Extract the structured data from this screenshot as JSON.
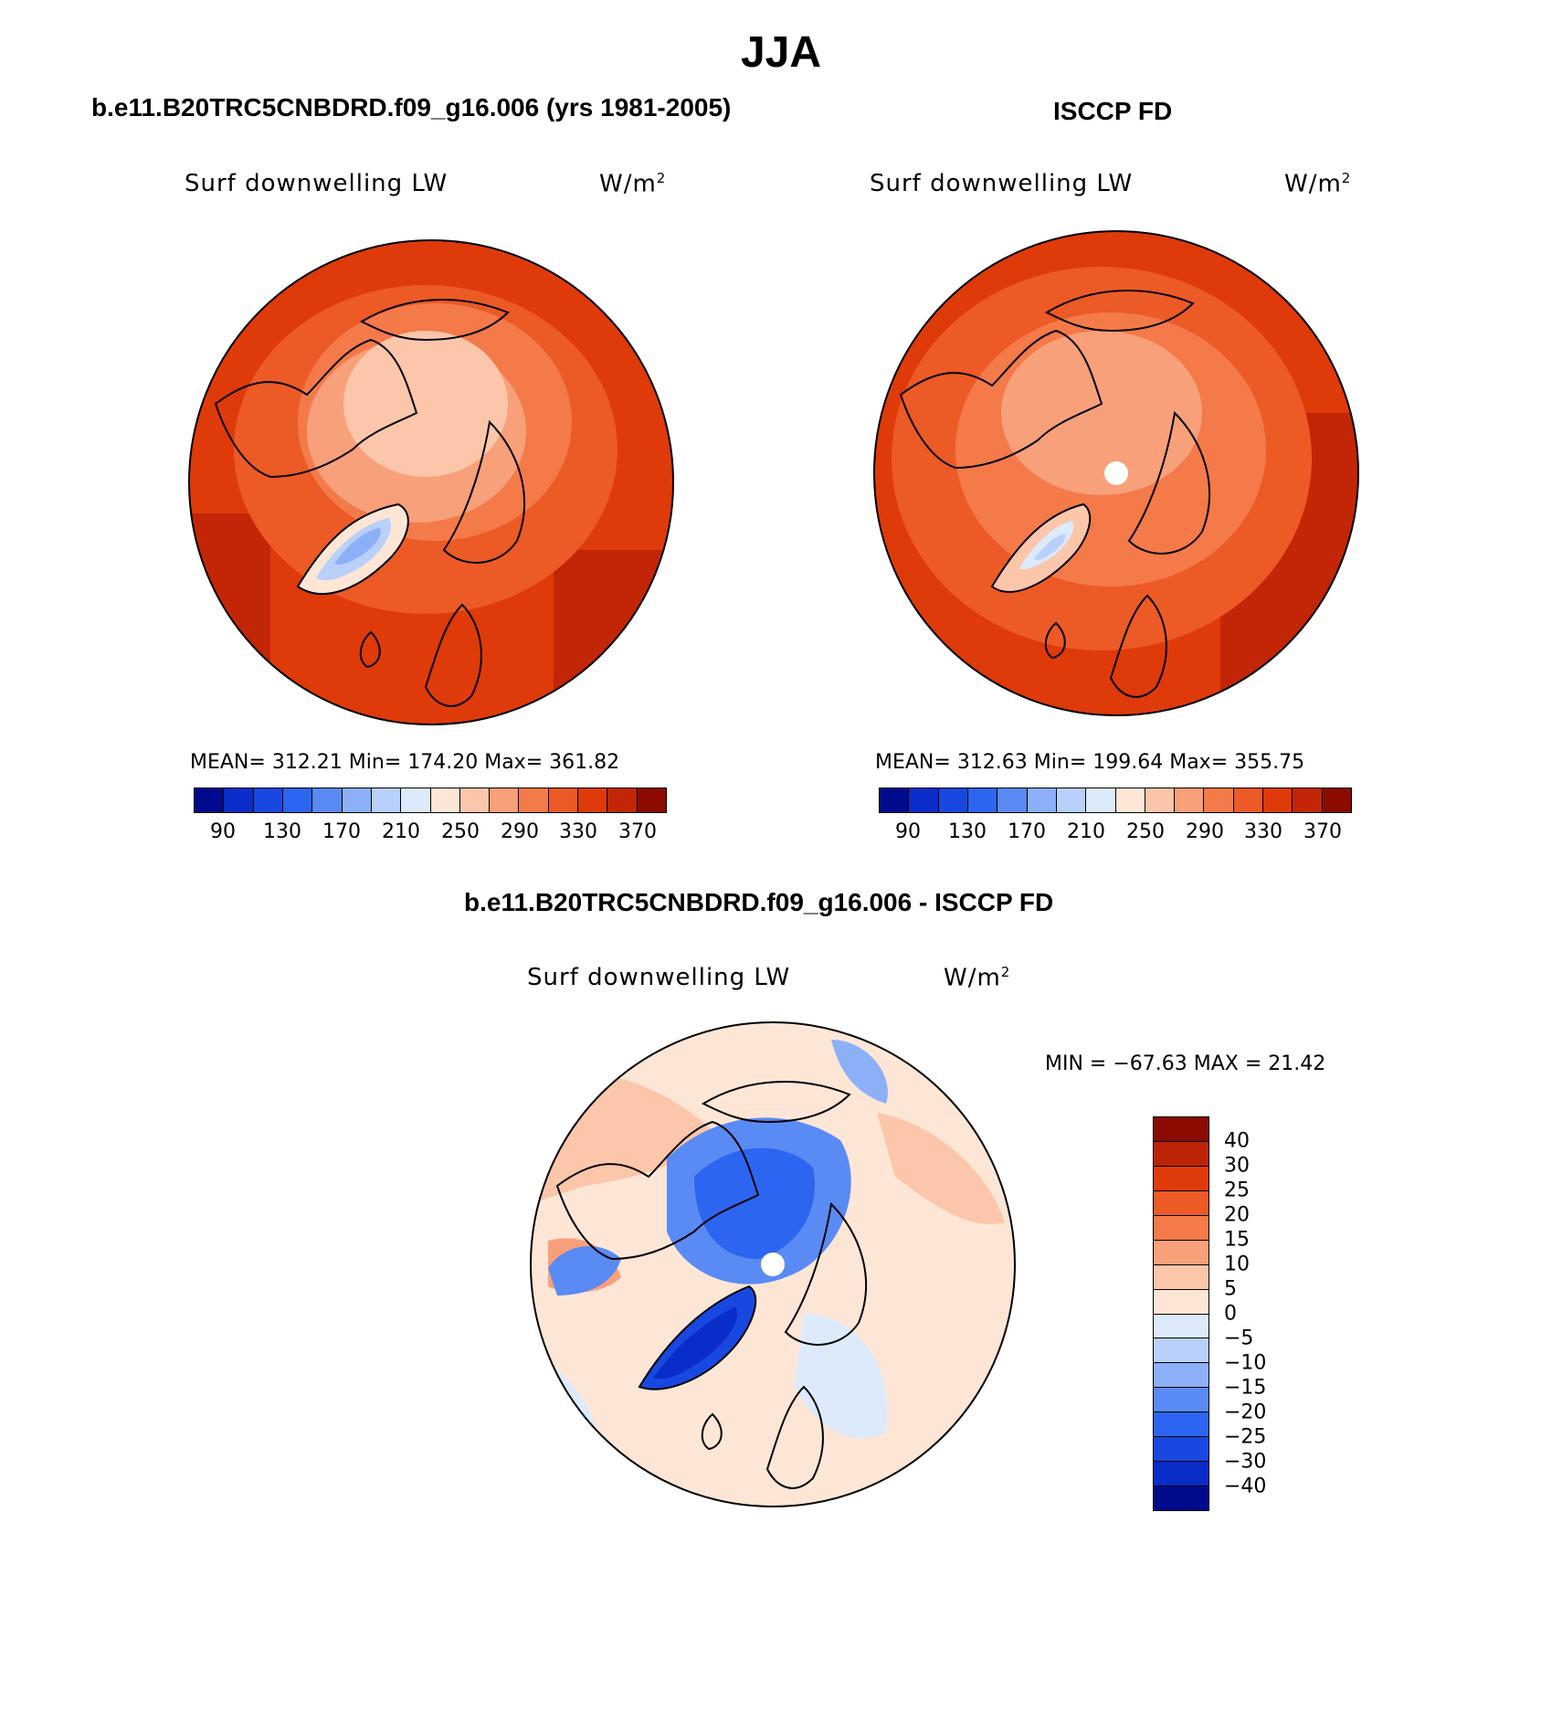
{
  "figure_title": "JJA",
  "panels": [
    {
      "title": "b.e11.B20TRC5CNBDRD.f09_g16.006 (yrs 1981-2005)",
      "variable_label": "Surf downwelling LW",
      "units_base": "W/m",
      "units_exp": "2",
      "stats": "MEAN= 312.21   Min= 174.20   Max= 361.82",
      "colorbar_ticks": [
        "90",
        "130",
        "170",
        "210",
        "250",
        "290",
        "330",
        "370"
      ],
      "polar_dot": false
    },
    {
      "title": "ISCCP FD",
      "variable_label": "Surf downwelling LW",
      "units_base": "W/m",
      "units_exp": "2",
      "stats": "MEAN= 312.63   Min= 199.64   Max= 355.75",
      "colorbar_ticks": [
        "90",
        "130",
        "170",
        "210",
        "250",
        "290",
        "330",
        "370"
      ],
      "polar_dot": true
    },
    {
      "title": "b.e11.B20TRC5CNBDRD.f09_g16.006 - ISCCP FD",
      "variable_label": "Surf downwelling LW",
      "units_base": "W/m",
      "units_exp": "2",
      "stats": "MIN = −67.63 MAX =  21.42",
      "colorbar_ticks": [
        "40",
        "30",
        "25",
        "20",
        "15",
        "10",
        "5",
        "0",
        "−5",
        "−10",
        "−15",
        "−20",
        "−25",
        "−30",
        "−40"
      ],
      "polar_dot": true
    }
  ],
  "colors": {
    "abs_scale": [
      "#000a8c",
      "#0a2cc8",
      "#1848e0",
      "#2c66f0",
      "#5a8af4",
      "#8cb0f8",
      "#b8d0fa",
      "#dceafc",
      "#fde6d6",
      "#fbc6aa",
      "#f8a07a",
      "#f47a4a",
      "#ec5a26",
      "#df3a0a",
      "#c22606",
      "#8c0a00"
    ],
    "diff_scale": [
      "#8c0a00",
      "#bb2406",
      "#df3a0a",
      "#ec5a26",
      "#f47a4a",
      "#f8a07a",
      "#fbc6aa",
      "#fde6d6",
      "#dceafc",
      "#b8d0fa",
      "#8cb0f8",
      "#5a8af4",
      "#2c66f0",
      "#1848e0",
      "#0a2cc8",
      "#000a8c"
    ]
  }
}
